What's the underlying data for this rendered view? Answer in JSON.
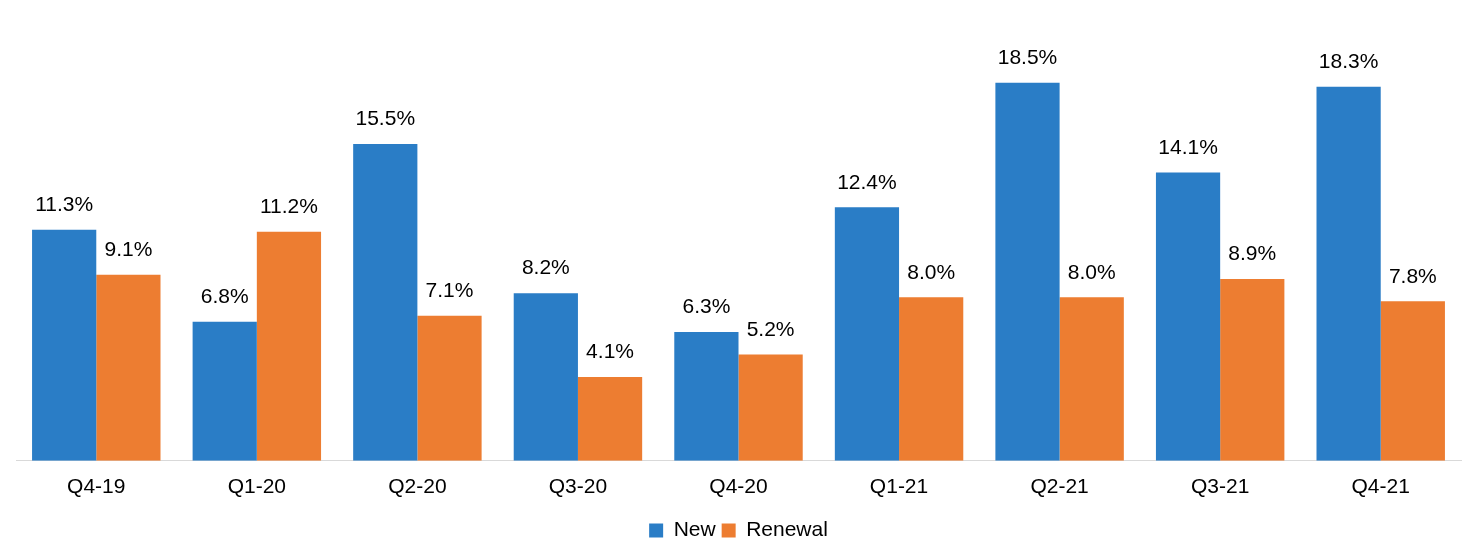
{
  "chart_data": {
    "type": "bar",
    "categories": [
      "Q4-19",
      "Q1-20",
      "Q2-20",
      "Q3-20",
      "Q4-20",
      "Q1-21",
      "Q2-21",
      "Q3-21",
      "Q4-21"
    ],
    "series": [
      {
        "name": "New",
        "color": "#2a7dc6",
        "values": [
          11.3,
          6.8,
          15.5,
          8.2,
          6.3,
          12.4,
          18.5,
          14.1,
          18.3
        ],
        "value_labels": [
          "11.3%",
          "6.8%",
          "15.5%",
          "8.2%",
          "6.3%",
          "12.4%",
          "18.5%",
          "14.1%",
          "18.3%"
        ]
      },
      {
        "name": "Renewal",
        "color": "#ed7d31",
        "values": [
          9.1,
          11.2,
          7.1,
          4.1,
          5.2,
          8.0,
          8.0,
          8.9,
          7.8
        ],
        "value_labels": [
          "9.1%",
          "11.2%",
          "7.1%",
          "4.1%",
          "5.2%",
          "8.0%",
          "8.0%",
          "8.9%",
          "7.8%"
        ]
      }
    ],
    "grid": false,
    "legend": "bottom"
  }
}
